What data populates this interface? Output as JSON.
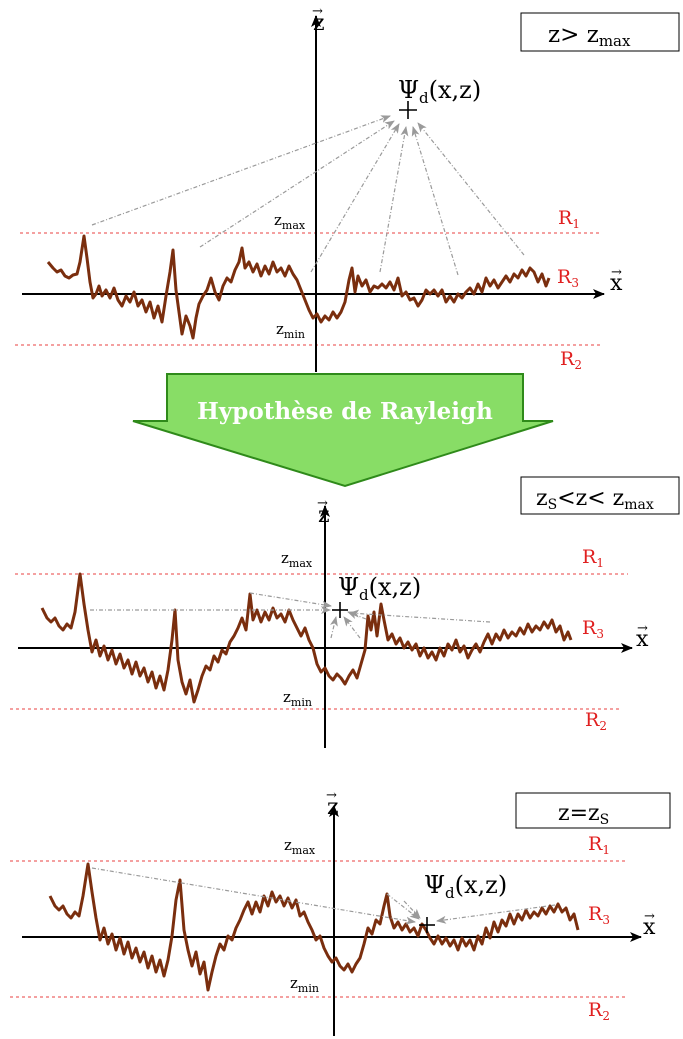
{
  "panels": [
    {
      "id": "top",
      "box_label": "z> z",
      "box_sub": "max",
      "x_axis": "x",
      "z_axis": "z",
      "zmax": "z",
      "zmax_sub": "max",
      "zmin": "z",
      "zmin_sub": "min",
      "r1": "R",
      "r1_sub": "1",
      "r2": "R",
      "r2_sub": "2",
      "r3": "R",
      "r3_sub": "3",
      "psi": "Ψ",
      "psi_sub": "d",
      "psi_args": "(x,z)"
    },
    {
      "id": "middle",
      "box_label": "z",
      "box_label2": "<z< z",
      "box_sub": "S",
      "box_sub2": "max",
      "x_axis": "x",
      "z_axis": "z",
      "zmax": "z",
      "zmax_sub": "max",
      "zmin": "z",
      "zmin_sub": "min",
      "r1": "R",
      "r1_sub": "1",
      "r2": "R",
      "r2_sub": "2",
      "r3": "R",
      "r3_sub": "3",
      "psi": "Ψ",
      "psi_sub": "d",
      "psi_args": "(x,z)"
    },
    {
      "id": "bottom",
      "box_label": "z=z",
      "box_sub": "S",
      "x_axis": "x",
      "z_axis": "z",
      "zmax": "z",
      "zmax_sub": "max",
      "zmin": "z",
      "zmin_sub": "min",
      "r1": "R",
      "r1_sub": "1",
      "r2": "R",
      "r2_sub": "2",
      "r3": "R",
      "r3_sub": "3",
      "psi": "Ψ",
      "psi_sub": "d",
      "psi_args": "(x,z)"
    }
  ],
  "transition_arrow": {
    "label": "Hypothèse de Rayleigh",
    "fill_color": "#88dd66",
    "stroke_color": "#2f8a1a"
  },
  "colors": {
    "surface": "#7a2e0e",
    "region_line": "#e84040",
    "ray": "#9a9a9a"
  }
}
